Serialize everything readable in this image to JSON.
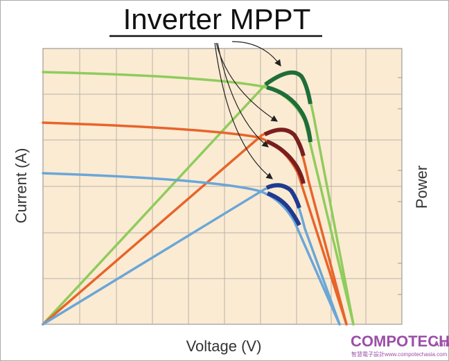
{
  "title": "Inverter MPPT",
  "x_axis_label": "Voltage (V)",
  "y_axis_label": "Current (A)",
  "y2_axis_label": "Power",
  "watermark": {
    "brand": "COMPOTECH",
    "suffix": "Asia",
    "url": "智慧電子設計www.compotechasia.com"
  }
}
